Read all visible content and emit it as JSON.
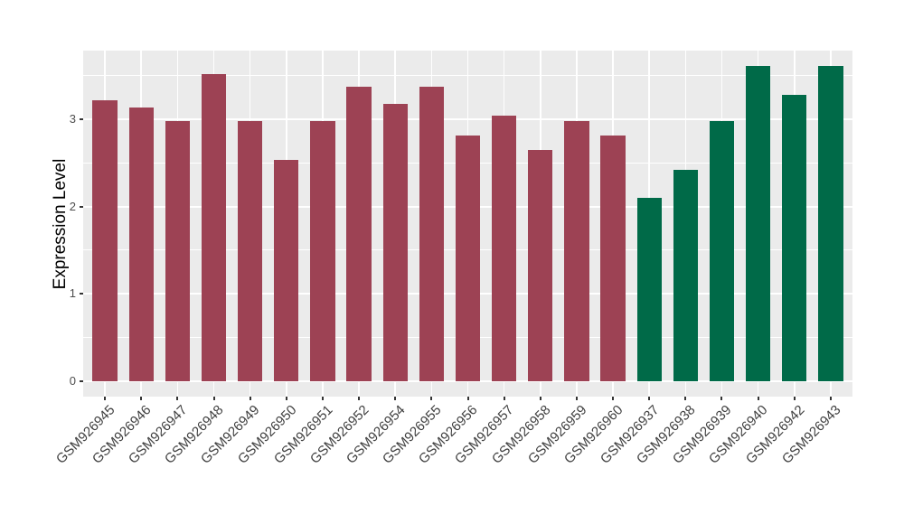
{
  "figure": {
    "background": "#FFFFFF",
    "panel_background": "#EBEBEB",
    "gridline_color": "#FFFFFF",
    "tick_color": "#333333",
    "axis_text_color": "#4D4D4D"
  },
  "chart_data": {
    "type": "bar",
    "title": "",
    "xlabel": "",
    "ylabel": "Expression Level",
    "legend_position": "none",
    "grid": true,
    "categories": [
      "GSM926945",
      "GSM926946",
      "GSM926947",
      "GSM926948",
      "GSM926949",
      "GSM926950",
      "GSM926951",
      "GSM926952",
      "GSM926954",
      "GSM926955",
      "GSM926956",
      "GSM926957",
      "GSM926958",
      "GSM926959",
      "GSM926960",
      "GSM926937",
      "GSM926938",
      "GSM926939",
      "GSM926940",
      "GSM926942",
      "GSM926943"
    ],
    "values": [
      3.22,
      3.14,
      2.98,
      3.52,
      2.98,
      2.54,
      2.98,
      3.38,
      3.18,
      3.38,
      2.82,
      3.04,
      2.65,
      2.98,
      2.82,
      2.1,
      2.42,
      2.98,
      3.61,
      3.28,
      3.61
    ],
    "bar_groups": [
      "g1",
      "g1",
      "g1",
      "g1",
      "g1",
      "g1",
      "g1",
      "g1",
      "g1",
      "g1",
      "g1",
      "g1",
      "g1",
      "g1",
      "g1",
      "g2",
      "g2",
      "g2",
      "g2",
      "g2",
      "g2"
    ],
    "group_colors": {
      "g1": "#9D4254",
      "g2": "#006A48"
    },
    "y_ticks": [
      0,
      1,
      2,
      3
    ],
    "y_minor_ticks": [
      0.5,
      1.5,
      2.5,
      3.5
    ],
    "ylim": [
      -0.18,
      3.79
    ]
  }
}
